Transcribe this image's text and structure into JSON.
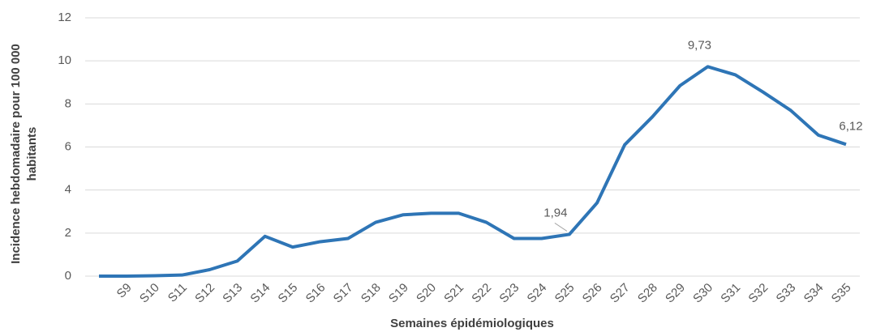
{
  "chart_data": {
    "type": "line",
    "ylabel": [
      "Incidence hebdomadaire pour 100 000",
      "habitants"
    ],
    "xlabel": "Semaines épidémiologiques",
    "categories": [
      null,
      "S9",
      "S10",
      "S11",
      "S12",
      "S13",
      "S14",
      "S15",
      "S16",
      "S17",
      "S18",
      "S19",
      "S20",
      "S21",
      "S22",
      "S23",
      "S24",
      "S25",
      "S26",
      "S27",
      "S28",
      "S29",
      "S30",
      "S31",
      "S32",
      "S33",
      "S34",
      "S35"
    ],
    "series": [
      {
        "color": "#2e75b6",
        "values": [
          0,
          0,
          0.02,
          0.05,
          0.3,
          0.7,
          1.85,
          1.35,
          1.6,
          1.75,
          2.5,
          2.85,
          2.92,
          2.92,
          2.5,
          1.75,
          1.75,
          1.94,
          3.4,
          6.1,
          7.4,
          8.85,
          9.73,
          9.35,
          8.55,
          7.7,
          6.55,
          6.12
        ],
        "value_labels": [
          null,
          null,
          null,
          null,
          null,
          null,
          null,
          null,
          null,
          null,
          null,
          null,
          null,
          null,
          null,
          null,
          null,
          "1,94",
          null,
          null,
          null,
          null,
          "9,73",
          null,
          null,
          null,
          null,
          "6,12"
        ]
      }
    ],
    "ylim": [
      0,
      12
    ],
    "yticks": [
      0,
      2,
      4,
      6,
      8,
      10,
      12
    ],
    "grid": true
  }
}
